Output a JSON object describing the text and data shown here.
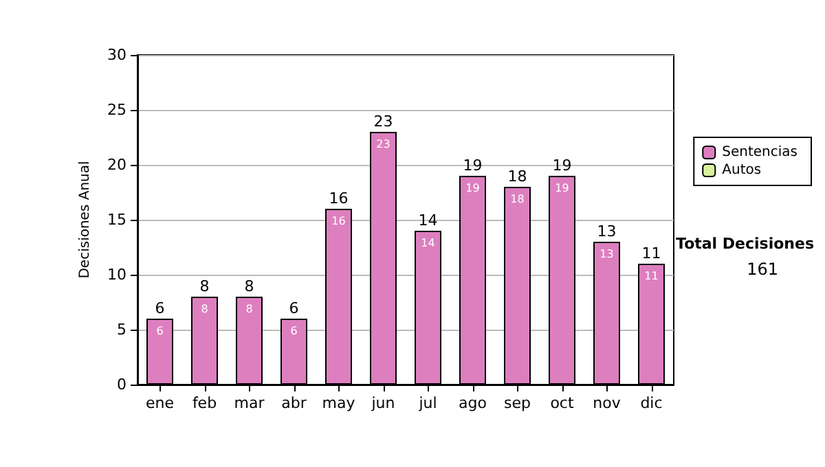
{
  "chart_data": {
    "type": "bar",
    "ylabel": "Decisiones Anual",
    "categories": [
      "ene",
      "feb",
      "mar",
      "abr",
      "may",
      "jun",
      "jul",
      "ago",
      "sep",
      "oct",
      "nov",
      "dic"
    ],
    "series": [
      {
        "name": "Sentencias",
        "color": "#dd7fbf",
        "values": [
          6,
          8,
          8,
          6,
          16,
          23,
          14,
          19,
          18,
          19,
          13,
          11
        ],
        "value_labels": [
          "6",
          "8",
          "8",
          "6",
          "16",
          "23",
          "14",
          "19",
          "18",
          "19",
          "13",
          "11"
        ]
      },
      {
        "name": "Autos",
        "color": "#d8f0a0",
        "values": [
          0,
          0,
          0,
          0,
          0,
          0,
          0,
          0,
          0,
          0,
          0,
          0
        ]
      }
    ],
    "stacked": true,
    "totals": [
      "6",
      "8",
      "8",
      "6",
      "16",
      "23",
      "14",
      "19",
      "18",
      "19",
      "13",
      "11"
    ],
    "ylim": [
      0,
      30
    ],
    "yticks": [
      0,
      5,
      10,
      15,
      20,
      25,
      30
    ],
    "grid": "y",
    "legend": "right",
    "annotations": [
      "Total Decisiones",
      "161"
    ]
  }
}
